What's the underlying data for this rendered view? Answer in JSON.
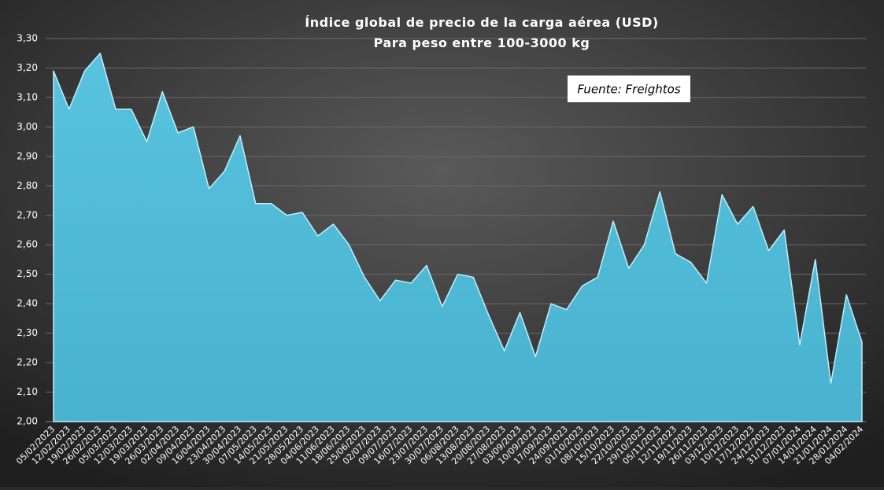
{
  "chart_data": {
    "type": "area",
    "title": "Índice global de precio de la carga aérea (USD)",
    "subtitle": "Para peso entre 100-3000 kg",
    "annotation": "Fuente: Freightos",
    "color": "#4fb9d5",
    "grid": true,
    "categories": [
      "05/02/2023",
      "12/02/2023",
      "19/02/2023",
      "26/02/2023",
      "05/03/2023",
      "12/03/2023",
      "19/03/2023",
      "26/03/2023",
      "02/04/2023",
      "09/04/2023",
      "16/04/2023",
      "23/04/2023",
      "30/04/2023",
      "07/05/2023",
      "14/05/2023",
      "21/05/2023",
      "28/05/2023",
      "04/06/2023",
      "11/06/2023",
      "18/06/2023",
      "25/06/2023",
      "02/07/2023",
      "09/07/2023",
      "16/07/2023",
      "23/07/2023",
      "30/07/2023",
      "06/08/2023",
      "13/08/2023",
      "20/08/2023",
      "27/08/2023",
      "03/09/2023",
      "10/09/2023",
      "17/09/2023",
      "24/09/2023",
      "01/10/2023",
      "08/10/2023",
      "15/10/2023",
      "22/10/2023",
      "29/10/2023",
      "05/11/2023",
      "12/11/2023",
      "19/11/2023",
      "26/11/2023",
      "03/12/2023",
      "10/12/2023",
      "17/12/2023",
      "24/12/2023",
      "31/12/2023",
      "07/01/2024",
      "14/01/2024",
      "21/01/2024",
      "28/01/2024",
      "04/02/2024"
    ],
    "values": [
      3.19,
      3.06,
      3.19,
      3.25,
      3.06,
      3.06,
      2.95,
      3.12,
      2.98,
      3.0,
      2.79,
      2.85,
      2.97,
      2.74,
      2.74,
      2.7,
      2.71,
      2.63,
      2.67,
      2.6,
      2.49,
      2.41,
      2.48,
      2.47,
      2.53,
      2.39,
      2.5,
      2.49,
      2.36,
      2.24,
      2.37,
      2.22,
      2.4,
      2.38,
      2.46,
      2.49,
      2.68,
      2.52,
      2.6,
      2.78,
      2.57,
      2.54,
      2.47,
      2.77,
      2.67,
      2.73,
      2.58,
      2.65,
      2.26,
      2.55,
      2.13,
      2.43,
      2.27
    ],
    "ylim": [
      2.0,
      3.3
    ],
    "yticks": [
      {
        "value": 2.0,
        "label": "2,00"
      },
      {
        "value": 2.1,
        "label": "2,10"
      },
      {
        "value": 2.2,
        "label": "2,20"
      },
      {
        "value": 2.3,
        "label": "2,30"
      },
      {
        "value": 2.4,
        "label": "2,40"
      },
      {
        "value": 2.5,
        "label": "2,50"
      },
      {
        "value": 2.6,
        "label": "2,60"
      },
      {
        "value": 2.7,
        "label": "2,70"
      },
      {
        "value": 2.8,
        "label": "2,80"
      },
      {
        "value": 2.9,
        "label": "2,90"
      },
      {
        "value": 3.0,
        "label": "3,00"
      },
      {
        "value": 3.1,
        "label": "3,10"
      },
      {
        "value": 3.2,
        "label": "3,20"
      },
      {
        "value": 3.3,
        "label": "3,30"
      }
    ]
  }
}
